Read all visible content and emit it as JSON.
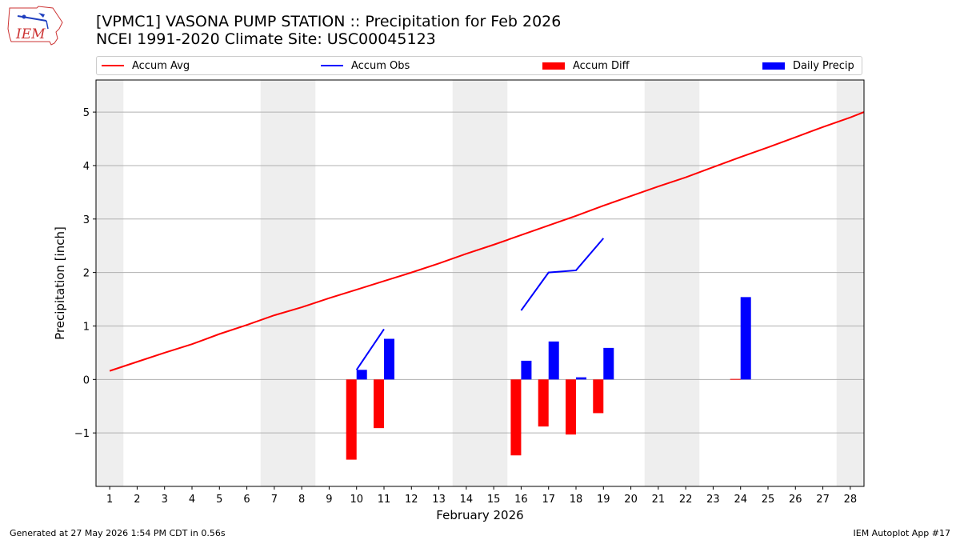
{
  "header": {
    "title_line1": "[VPMC1] VASONA PUMP STATION :: Precipitation for Feb 2026",
    "title_line2": "NCEI 1991-2020 Climate Site: USC00045123",
    "logo_text": "IEM"
  },
  "footer": {
    "generated": "Generated at 27 May 2026 1:54 PM CDT in 0.56s",
    "app": "IEM Autoplot App #17"
  },
  "chart_data": {
    "type": "bar",
    "title": "[VPMC1] VASONA PUMP STATION :: Precipitation for Feb 2026",
    "subtitle": "NCEI 1991-2020 Climate Site: USC00045123",
    "xlabel": "February 2026",
    "ylabel": "Precipitation [inch]",
    "xlim": [
      0.5,
      28.5
    ],
    "ylim": [
      -2.0,
      5.6
    ],
    "xticks": [
      "1",
      "2",
      "3",
      "4",
      "5",
      "6",
      "7",
      "8",
      "9",
      "10",
      "11",
      "12",
      "13",
      "14",
      "15",
      "16",
      "17",
      "18",
      "19",
      "20",
      "21",
      "22",
      "23",
      "24",
      "25",
      "26",
      "27",
      "28"
    ],
    "yticks": [
      -1,
      0,
      1,
      2,
      3,
      4,
      5
    ],
    "ytick_labels": [
      "−1",
      "0",
      "1",
      "2",
      "3",
      "4",
      "5"
    ],
    "grid": "horizontal",
    "legend_position": "top",
    "weekend_shading": [
      [
        0.5,
        1.5
      ],
      [
        6.5,
        8.5
      ],
      [
        13.5,
        15.5
      ],
      [
        20.5,
        22.5
      ],
      [
        27.5,
        28.5
      ]
    ],
    "colors": {
      "accum_avg": "#ff0000",
      "accum_obs": "#0000ff",
      "accum_diff": "#ff0000",
      "daily_precip": "#0000ff",
      "weekend": "#eeeeee",
      "grid": "#b0b0b0"
    },
    "series": [
      {
        "name": "Accum Avg",
        "type": "line",
        "x": [
          1,
          2,
          3,
          4,
          5,
          6,
          7,
          8,
          9,
          10,
          11,
          12,
          13,
          14,
          15,
          16,
          17,
          18,
          19,
          20,
          21,
          22,
          23,
          24,
          25,
          26,
          27,
          28,
          28.5
        ],
        "values": [
          0.16,
          0.33,
          0.5,
          0.66,
          0.85,
          1.02,
          1.2,
          1.35,
          1.52,
          1.68,
          1.84,
          2.0,
          2.17,
          2.35,
          2.52,
          2.7,
          2.88,
          3.06,
          3.25,
          3.43,
          3.61,
          3.78,
          3.97,
          4.16,
          4.34,
          4.53,
          4.72,
          4.9,
          5.0
        ]
      },
      {
        "name": "Accum Obs",
        "type": "line",
        "segments": [
          {
            "x": [
              10,
              11
            ],
            "values": [
              0.18,
              0.94
            ]
          },
          {
            "x": [
              16,
              17,
              18,
              19
            ],
            "values": [
              1.29,
              2.0,
              2.04,
              2.64
            ]
          }
        ]
      },
      {
        "name": "Accum Diff",
        "type": "bar",
        "x": [
          10,
          11,
          16,
          17,
          18,
          19,
          24
        ],
        "values": [
          -1.5,
          -0.91,
          -1.42,
          -0.88,
          -1.03,
          -0.63,
          0.01
        ]
      },
      {
        "name": "Daily Precip",
        "type": "bar",
        "x": [
          10,
          11,
          16,
          17,
          18,
          19,
          24
        ],
        "values": [
          0.18,
          0.76,
          0.35,
          0.71,
          0.04,
          0.59,
          1.54
        ]
      }
    ]
  }
}
